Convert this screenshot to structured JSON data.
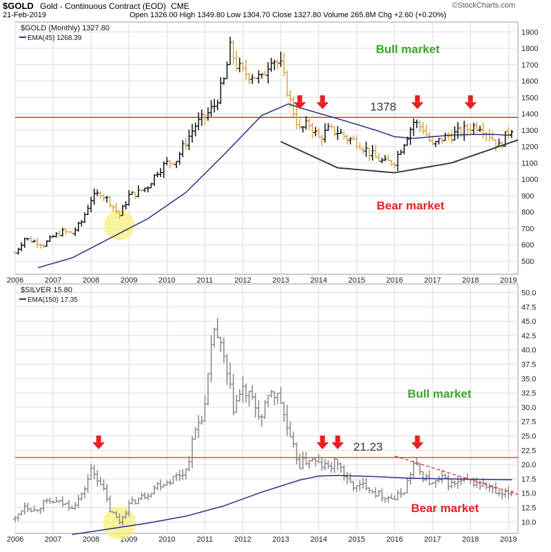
{
  "header": {
    "symbol": "$GOLD",
    "description": "Gold - Continuous Contract (EOD)",
    "exchange": "CME",
    "date": "21-Feb-2019",
    "ohlc": "Open 1326.00 High 1349.80 Low 1304.70 Close 1327.80 Volume 265.8M Chg +2.60 (+0.20%)",
    "watermark": "©StockCharts.com"
  },
  "colors": {
    "up_bar": "#1a1a1a",
    "down_bar": "#d9a84e",
    "silver_bar": "#8c8c8c",
    "ema": "#2b2b86",
    "resistance": "#e62020",
    "arrow": "#e62020",
    "bull_text": "#3aa62a",
    "bear_text": "#e62020",
    "highlight": "#f5f07a",
    "grid": "#dcdcdc"
  },
  "chart_data": [
    {
      "type": "ohlc",
      "legend": [
        "$GOLD (Monthly) 1327.80",
        "EMA(45) 1268.39"
      ],
      "x_ticks": [
        "2006",
        "2007",
        "2008",
        "2009",
        "2010",
        "2011",
        "2012",
        "2013",
        "2014",
        "2015",
        "2016",
        "2017",
        "2018",
        "2019"
      ],
      "y_ticks": [
        500,
        600,
        700,
        800,
        900,
        1000,
        1100,
        1200,
        1300,
        1400,
        1500,
        1600,
        1700,
        1800,
        1900
      ],
      "ylim": [
        420,
        1960
      ],
      "xlim": [
        2006.0,
        2019.25
      ],
      "close_series": {
        "dates": [
          2006.0,
          2006.25,
          2006.5,
          2006.75,
          2007.0,
          2007.25,
          2007.5,
          2007.75,
          2008.0,
          2008.25,
          2008.5,
          2008.75,
          2009.0,
          2009.25,
          2009.5,
          2009.75,
          2010.0,
          2010.25,
          2010.5,
          2010.75,
          2011.0,
          2011.25,
          2011.5,
          2011.67,
          2011.83,
          2012.0,
          2012.25,
          2012.5,
          2012.75,
          2013.0,
          2013.25,
          2013.5,
          2013.75,
          2014.0,
          2014.25,
          2014.5,
          2014.75,
          2015.0,
          2015.25,
          2015.5,
          2015.75,
          2016.0,
          2016.25,
          2016.5,
          2016.75,
          2017.0,
          2017.25,
          2017.5,
          2017.75,
          2018.0,
          2018.25,
          2018.5,
          2018.75,
          2019.0,
          2019.13
        ],
        "values": [
          550,
          640,
          620,
          600,
          650,
          680,
          670,
          740,
          880,
          920,
          860,
          780,
          900,
          920,
          960,
          1050,
          1100,
          1120,
          1230,
          1330,
          1380,
          1450,
          1600,
          1800,
          1700,
          1650,
          1640,
          1610,
          1750,
          1690,
          1470,
          1300,
          1340,
          1250,
          1300,
          1290,
          1250,
          1230,
          1180,
          1130,
          1100,
          1110,
          1230,
          1350,
          1310,
          1200,
          1250,
          1270,
          1290,
          1320,
          1330,
          1270,
          1200,
          1290,
          1327.8
        ]
      },
      "ema": {
        "name": "EMA(45)",
        "dates": [
          2006.6,
          2007.5,
          2008.5,
          2009.5,
          2010.5,
          2011.5,
          2012.5,
          2013.2,
          2013.6,
          2014.5,
          2015.5,
          2016.0,
          2016.5,
          2017.5,
          2018.5,
          2019.13
        ],
        "values": [
          460,
          520,
          640,
          760,
          920,
          1150,
          1390,
          1460,
          1430,
          1370,
          1300,
          1260,
          1250,
          1270,
          1275,
          1268
        ]
      },
      "resistance": {
        "value": 1378,
        "label": "1378"
      },
      "arrows_at": [
        2013.5,
        2014.1,
        2016.6,
        2018.0
      ],
      "arc_label_points": {
        "dates": [
          2013.0,
          2014.5,
          2016.0,
          2017.5,
          2019.25
        ],
        "values": [
          1230,
          1070,
          1040,
          1100,
          1240
        ]
      },
      "annotations": {
        "bull": "Bull market",
        "bear": "Bear market"
      }
    },
    {
      "type": "ohlc",
      "legend": [
        "$SILVER 15.80",
        "EMA(150) 17.35"
      ],
      "x_ticks": [
        "2006",
        "2007",
        "2008",
        "2009",
        "2010",
        "2011",
        "2012",
        "2013",
        "2014",
        "2015",
        "2016",
        "2017",
        "2018",
        "2019"
      ],
      "y_ticks": [
        10.0,
        12.5,
        15.0,
        17.5,
        20.0,
        22.5,
        25.0,
        27.5,
        30.0,
        32.5,
        35.0,
        37.5,
        40.0,
        42.5,
        45.0,
        47.5,
        50.0
      ],
      "ylim": [
        8.0,
        51.5
      ],
      "xlim": [
        2006.0,
        2019.25
      ],
      "close_series": {
        "dates": [
          2006.0,
          2006.25,
          2006.5,
          2006.75,
          2007.0,
          2007.25,
          2007.5,
          2007.75,
          2008.0,
          2008.25,
          2008.5,
          2008.75,
          2009.0,
          2009.25,
          2009.5,
          2009.75,
          2010.0,
          2010.25,
          2010.5,
          2010.75,
          2011.0,
          2011.25,
          2011.5,
          2011.75,
          2012.0,
          2012.25,
          2012.5,
          2012.75,
          2013.0,
          2013.25,
          2013.5,
          2013.75,
          2014.0,
          2014.25,
          2014.5,
          2014.75,
          2015.0,
          2015.25,
          2015.5,
          2015.75,
          2016.0,
          2016.25,
          2016.5,
          2016.75,
          2017.0,
          2017.25,
          2017.5,
          2017.75,
          2018.0,
          2018.25,
          2018.5,
          2018.75,
          2019.0,
          2019.13
        ],
        "values": [
          10.5,
          13.0,
          12.0,
          13.2,
          13.5,
          13.2,
          12.8,
          14.5,
          19.0,
          17.0,
          12.0,
          10.0,
          13.0,
          14.0,
          15.0,
          16.5,
          17.0,
          18.0,
          19.0,
          26.0,
          30.0,
          44.0,
          38.0,
          30.0,
          33.0,
          31.0,
          28.0,
          33.0,
          31.0,
          24.0,
          20.0,
          21.0,
          20.0,
          19.5,
          20.5,
          17.0,
          16.0,
          16.5,
          15.0,
          14.5,
          14.0,
          15.5,
          20.0,
          18.0,
          16.5,
          17.5,
          16.5,
          17.0,
          17.0,
          16.5,
          16.0,
          14.5,
          15.0,
          15.8
        ]
      },
      "ema": {
        "name": "EMA(150)",
        "dates": [
          2007.5,
          2008.5,
          2009.5,
          2010.5,
          2011.5,
          2012.5,
          2013.5,
          2014.0,
          2014.5,
          2015.5,
          2016.5,
          2017.5,
          2018.5,
          2019.13
        ],
        "values": [
          7.8,
          8.8,
          9.8,
          11.0,
          12.8,
          15.2,
          17.3,
          18.0,
          18.1,
          17.9,
          17.6,
          17.5,
          17.4,
          17.35
        ]
      },
      "resistance": {
        "value": 21.23,
        "label": "21.23"
      },
      "arrows_at": [
        2008.2,
        2014.1,
        2014.5,
        2016.6
      ],
      "trendline": {
        "dates": [
          2016.0,
          2019.25
        ],
        "values": [
          21.5,
          14.8
        ]
      },
      "annotations": {
        "bull": "Bull market",
        "bear": "Bear market"
      }
    }
  ]
}
